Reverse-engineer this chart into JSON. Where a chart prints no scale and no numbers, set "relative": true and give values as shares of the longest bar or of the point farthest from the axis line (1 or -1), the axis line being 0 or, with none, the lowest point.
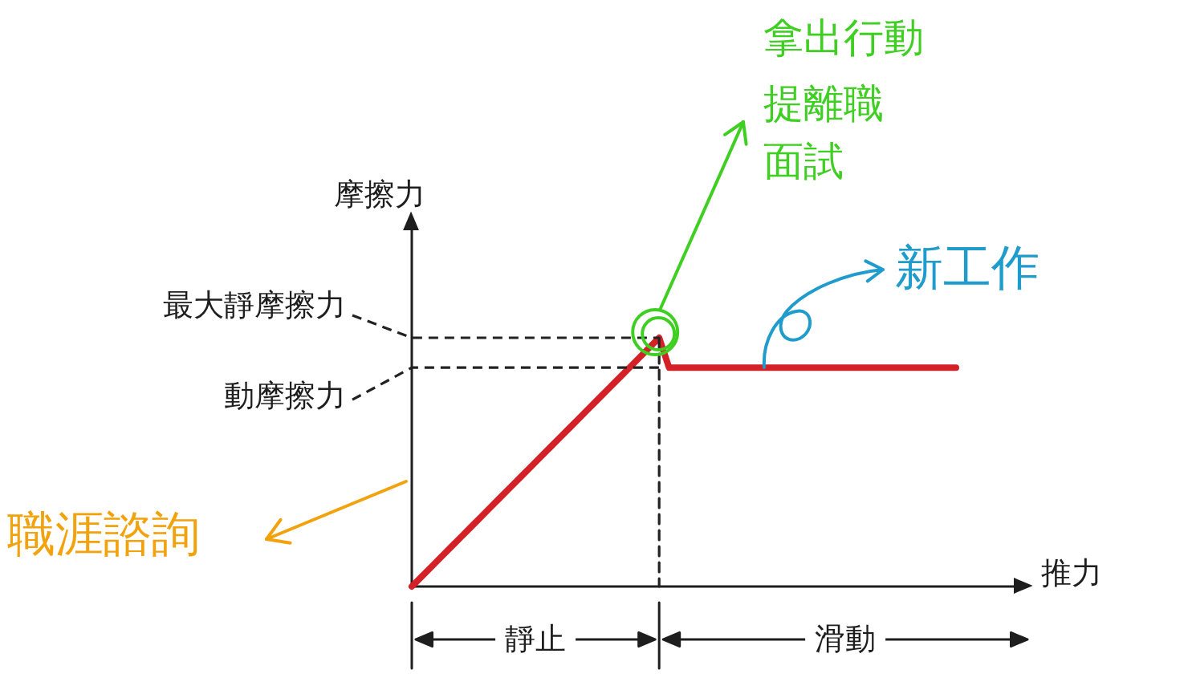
{
  "chart_data": {
    "type": "line",
    "relative": true,
    "line_style": "solid",
    "xlabel": "推力",
    "ylabel": "摩擦力",
    "categories": [
      null,
      null,
      null,
      null,
      null,
      null,
      null,
      null,
      null,
      null,
      null,
      null,
      null,
      null,
      null,
      null,
      null,
      null,
      null,
      null,
      null,
      null,
      null,
      null,
      null,
      null,
      null,
      null,
      null,
      null,
      null,
      null,
      null,
      null,
      null,
      null,
      null,
      null,
      null,
      null,
      null,
      null,
      null,
      null,
      null,
      null,
      null,
      null,
      null,
      null,
      null,
      null,
      null,
      null,
      null,
      null
    ],
    "series": [
      {
        "color": "#d42027",
        "values": [
          0,
          0.04,
          0.08,
          0.12,
          0.16,
          0.2,
          0.24,
          0.28,
          0.32,
          0.36,
          0.4,
          0.44,
          0.48,
          0.52,
          0.56,
          0.6,
          0.64,
          0.68,
          0.72,
          0.76,
          0.8,
          0.84,
          0.88,
          0.92,
          0.96,
          1,
          0.88,
          0.88,
          0.88,
          0.88,
          0.88,
          0.88,
          0.88,
          0.88,
          0.88,
          0.88,
          0.88,
          0.88,
          0.88,
          0.88,
          0.88,
          0.88,
          0.88,
          0.88,
          0.88,
          0.88,
          0.88,
          0.88,
          0.88,
          0.88,
          0.88,
          0.88,
          0.88,
          0.88,
          0.88,
          0.88
        ]
      }
    ],
    "ref_lines": [
      {
        "axis": "y",
        "value": 1,
        "label": "最大靜摩擦力",
        "color": "#222222",
        "line_style": "dashed"
      },
      {
        "axis": "y",
        "value": 0.88,
        "label": "動摩擦力",
        "color": "#222222",
        "line_style": "dashed"
      }
    ],
    "annotations": [
      "拿出行動",
      "提離職",
      "面試",
      "新工作",
      "職涯諮詢",
      "靜止",
      "滑動"
    ]
  }
}
